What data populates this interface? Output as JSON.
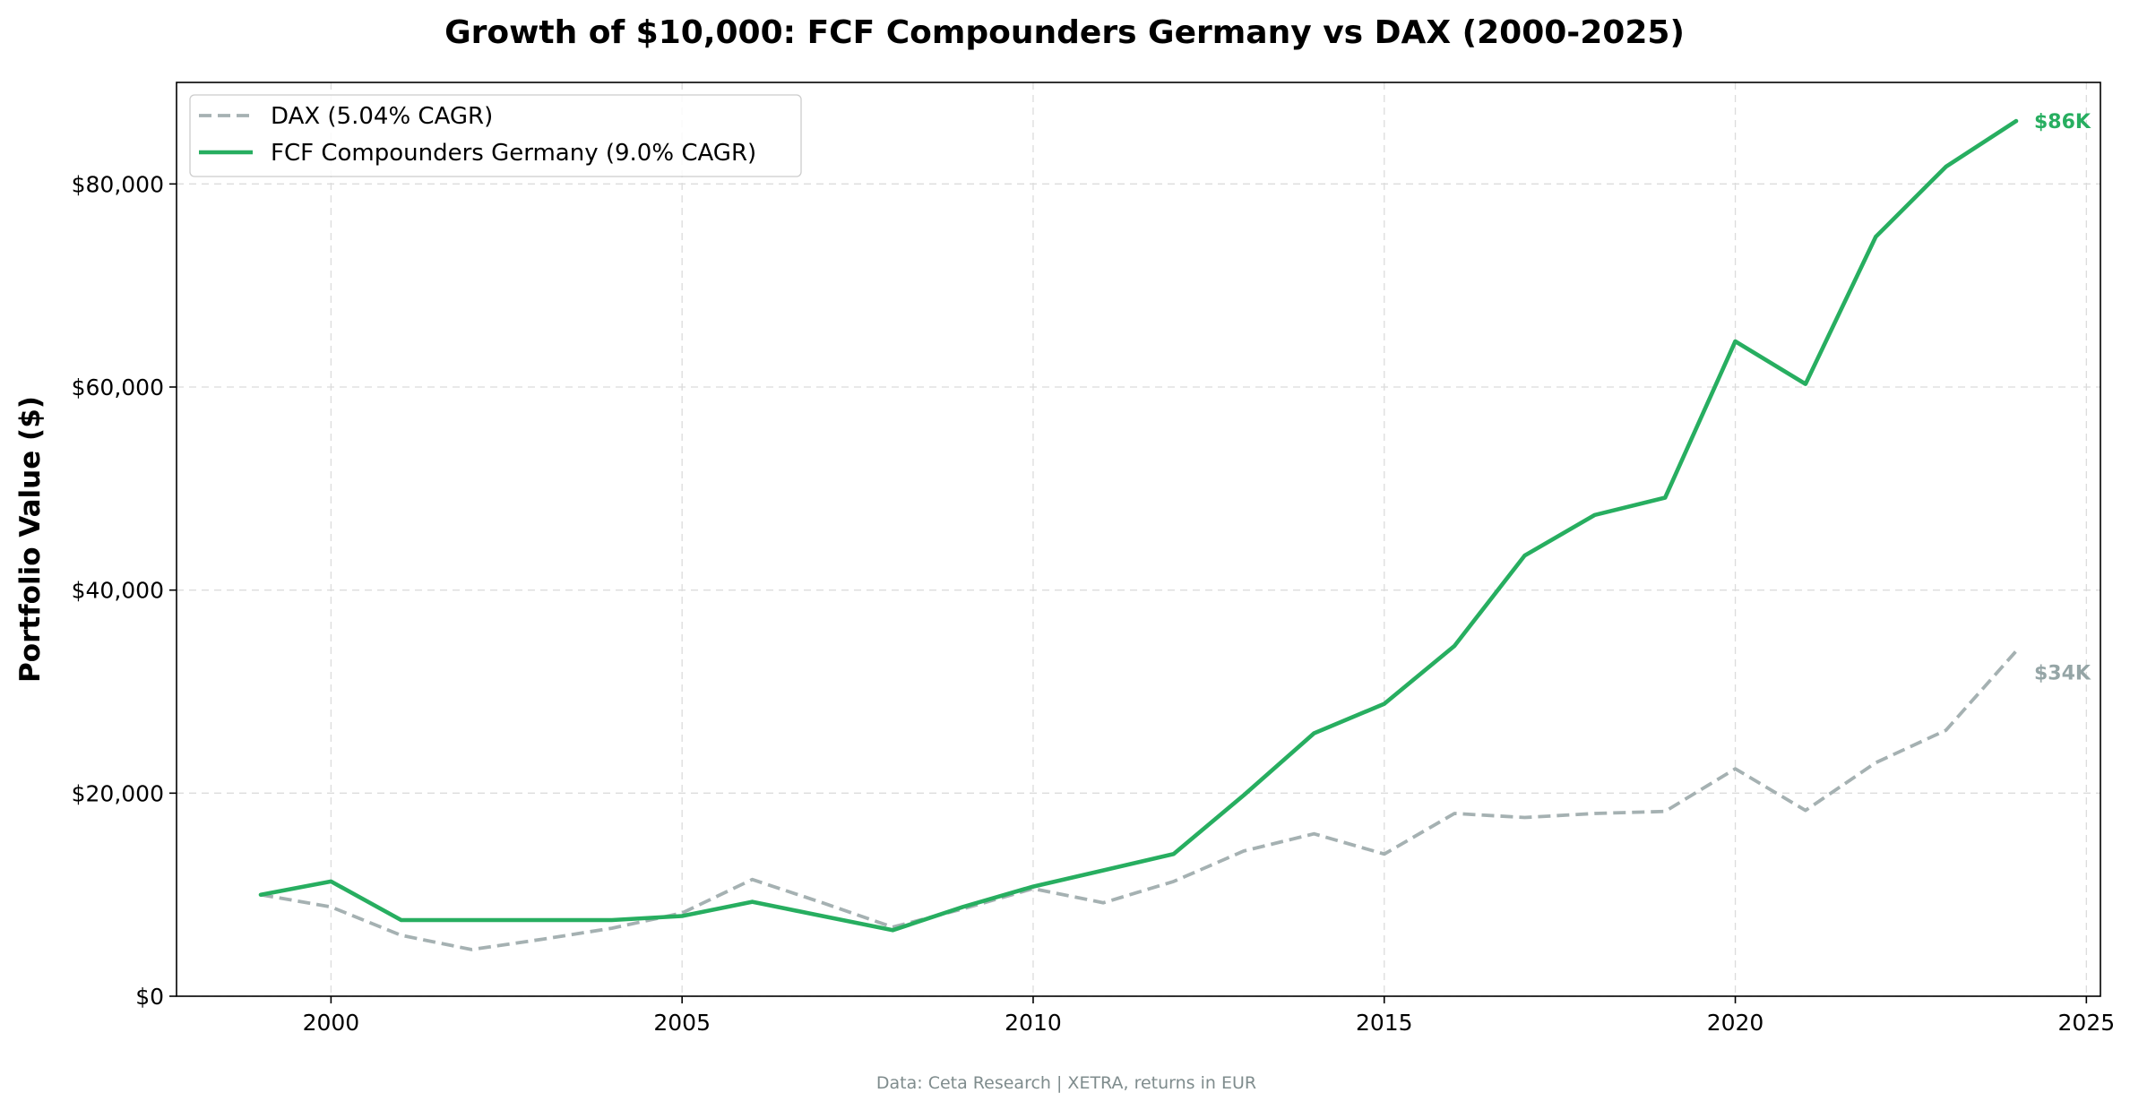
{
  "chart_data": {
    "type": "line",
    "title": "Growth of $10,000: FCF Compounders Germany vs DAX (2000-2025)",
    "xlabel": "",
    "ylabel": "Portfolio Value ($)",
    "xlim": [
      1997.8,
      2025.2
    ],
    "ylim": [
      0,
      90000
    ],
    "x_ticks": [
      2000,
      2005,
      2010,
      2015,
      2020,
      2025
    ],
    "x_tick_labels": [
      "2000",
      "2005",
      "2010",
      "2015",
      "2020",
      "2025"
    ],
    "y_ticks": [
      0,
      20000,
      40000,
      60000,
      80000
    ],
    "y_tick_labels": [
      "$0",
      "$20,000",
      "$40,000",
      "$60,000",
      "$80,000"
    ],
    "grid": true,
    "legend_position": "top-left",
    "x": [
      1999,
      2000,
      2001,
      2002,
      2003,
      2004,
      2005,
      2006,
      2007,
      2008,
      2009,
      2010,
      2011,
      2012,
      2013,
      2014,
      2015,
      2016,
      2017,
      2018,
      2019,
      2020,
      2021,
      2022,
      2023,
      2024
    ],
    "series": [
      {
        "name": "DAX (5.04% CAGR)",
        "color": "#a5b1b2",
        "style": "dashed",
        "values": [
          10000,
          8800,
          6000,
          4600,
          5600,
          6700,
          8200,
          11500,
          9200,
          6800,
          8600,
          10600,
          9200,
          11300,
          14300,
          16000,
          14000,
          18000,
          17600,
          18000,
          18200,
          22400,
          18300,
          23000,
          26200,
          34000
        ]
      },
      {
        "name": "FCF Compounders Germany (9.0% CAGR)",
        "color": "#27ae60",
        "style": "solid",
        "values": [
          10000,
          11300,
          7500,
          7500,
          7500,
          7500,
          7900,
          9300,
          7900,
          6500,
          8800,
          10800,
          12400,
          14000,
          19800,
          25900,
          28800,
          34500,
          43400,
          47400,
          49100,
          64500,
          60300,
          74800,
          81700,
          86200
        ]
      }
    ],
    "end_labels": [
      {
        "text": "$86K",
        "color": "#27ae60"
      },
      {
        "text": "$34K",
        "color": "#95a5a6"
      }
    ],
    "source_note": "Data: Ceta Research | XETRA, returns in EUR"
  }
}
